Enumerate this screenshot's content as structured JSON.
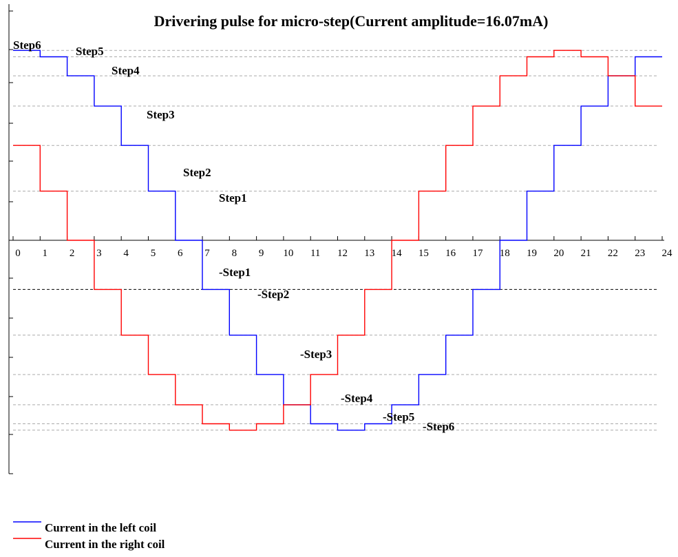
{
  "chart_data": {
    "type": "line",
    "title": "Drivering pulse for micro-step(Current amplitude=16.07mA)",
    "xlabel": "",
    "ylabel": "",
    "x_ticks": [
      0,
      1,
      2,
      3,
      4,
      5,
      6,
      7,
      8,
      9,
      10,
      11,
      12,
      13,
      14,
      15,
      16,
      17,
      18,
      19,
      20,
      21,
      22,
      23,
      24
    ],
    "xlim": [
      0,
      24
    ],
    "step_levels": [
      {
        "label": "Step6",
        "value": 16.07
      },
      {
        "label": "Step5",
        "value": 15.53
      },
      {
        "label": "Step4",
        "value": 13.92
      },
      {
        "label": "Step3",
        "value": 11.36
      },
      {
        "label": "Step2",
        "value": 8.03
      },
      {
        "label": "Step1",
        "value": 4.16
      },
      {
        "label": "-Step1",
        "value": -4.16
      },
      {
        "label": "-Step2",
        "value": -8.03
      },
      {
        "label": "-Step3",
        "value": -11.36
      },
      {
        "label": "-Step4",
        "value": -13.92
      },
      {
        "label": "-Step5",
        "value": -15.53
      },
      {
        "label": "-Step6",
        "value": -16.07
      }
    ],
    "series": [
      {
        "name": "Current in the left coil",
        "color": "#0000ff",
        "step_values": [
          16.07,
          15.53,
          13.92,
          11.36,
          8.03,
          4.16,
          0,
          -4.16,
          -8.03,
          -11.36,
          -13.92,
          -15.53,
          -16.07,
          -15.53,
          -13.92,
          -11.36,
          -8.03,
          -4.16,
          0,
          4.16,
          8.03,
          11.36,
          13.92,
          15.53
        ]
      },
      {
        "name": "Current in the right coil",
        "color": "#ff0000",
        "step_values": [
          8.03,
          4.16,
          0,
          -4.16,
          -8.03,
          -11.36,
          -13.92,
          -15.53,
          -16.07,
          -15.53,
          -13.92,
          -11.36,
          -8.03,
          -4.16,
          0,
          4.16,
          8.03,
          11.36,
          13.92,
          15.53,
          16.07,
          15.53,
          13.92,
          11.36
        ]
      }
    ],
    "grid": "dashed horizontal lines at step levels",
    "legend_position": "bottom-left"
  }
}
